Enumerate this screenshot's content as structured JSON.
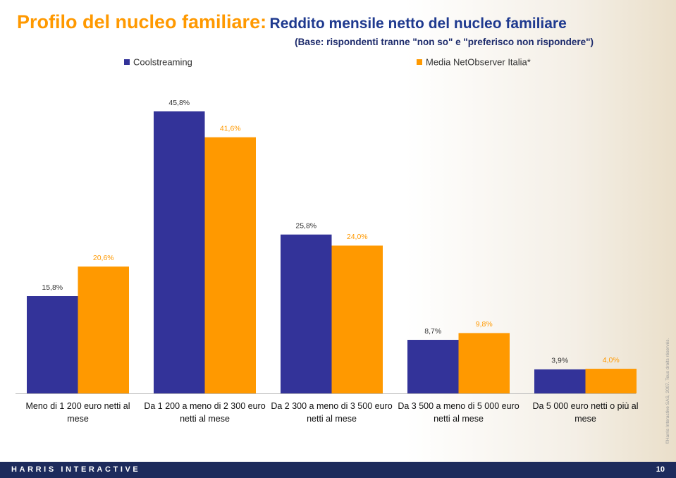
{
  "chart_data": {
    "type": "bar",
    "title": "Profilo del nucleo familiare:",
    "title_detail": "Reddito mensile netto del nucleo familiare",
    "base_note": "(Base: rispondenti tranne \"non so\" e \"preferisco non rispondere\")",
    "categories": [
      "Meno di 1 200 euro netti al mese",
      "Da 1 200 a meno di 2 300 euro netti al mese",
      "Da 2 300 a meno di 3 500 euro netti al mese",
      "Da 3 500 a meno di 5 000 euro netti al mese",
      "Da 5 000 euro netti o più al mese"
    ],
    "series": [
      {
        "name": "Coolstreaming",
        "color": "#333399",
        "values": [
          15.8,
          45.8,
          25.8,
          8.7,
          3.9
        ],
        "value_labels": [
          "15,8%",
          "45,8%",
          "25,8%",
          "8,7%",
          "3,9%"
        ]
      },
      {
        "name": "Media NetObserver Italia*",
        "color": "#ff9900",
        "values": [
          20.6,
          41.6,
          24.0,
          9.8,
          4.0
        ],
        "value_labels": [
          "20,6%",
          "41,6%",
          "24,0%",
          "9,8%",
          "4,0%"
        ]
      }
    ]
  },
  "footer": {
    "brand": "HARRIS INTERACTIVE",
    "page": 10,
    "copyright": "©Harris Interactive SAS, 2007. Tous droits réservés."
  }
}
